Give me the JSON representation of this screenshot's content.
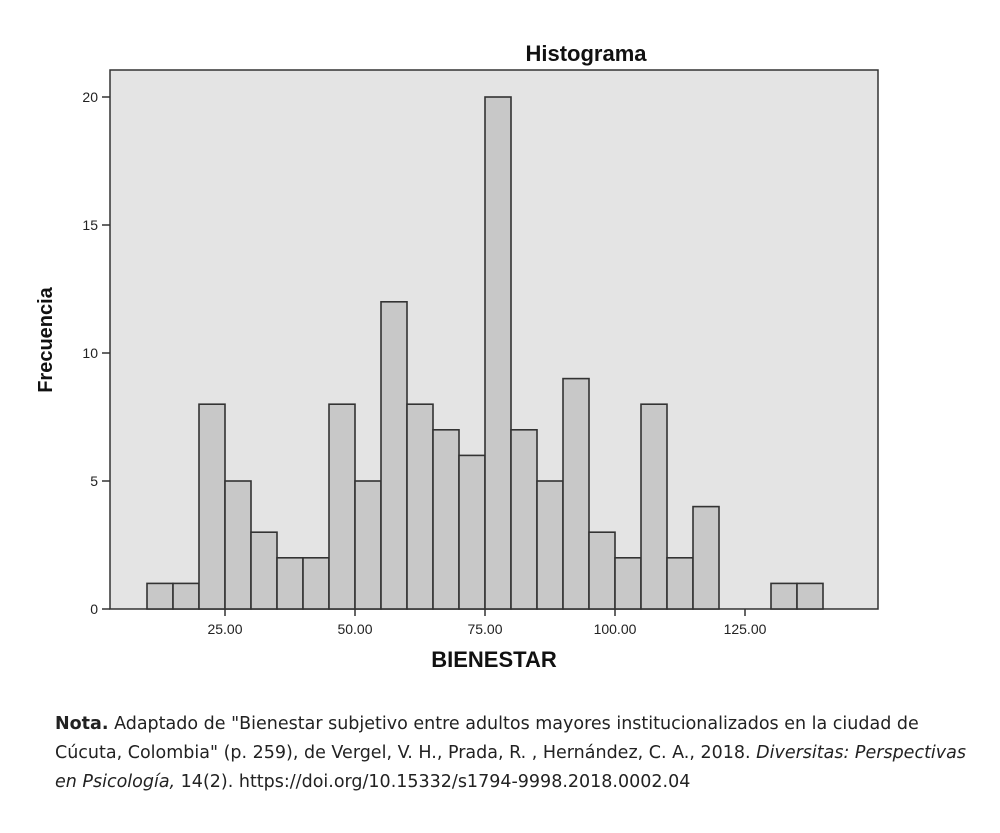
{
  "chart_data": {
    "type": "bar",
    "title": "Histograma",
    "xlabel": "BIENESTAR",
    "ylabel": "Frecuencia",
    "bin_start": 10,
    "bin_width": 5,
    "values": [
      1,
      1,
      8,
      5,
      3,
      2,
      2,
      8,
      5,
      12,
      8,
      7,
      6,
      20,
      7,
      5,
      9,
      3,
      2,
      8,
      2,
      4,
      0,
      0,
      1,
      1
    ],
    "xlim": [
      0,
      150
    ],
    "ylim": [
      0,
      21
    ],
    "xticks": [
      25,
      50,
      75,
      100,
      125
    ],
    "xtick_labels": [
      "25.00",
      "50.00",
      "75.00",
      "100.00",
      "125.00"
    ],
    "yticks": [
      0,
      5,
      10,
      15,
      20
    ],
    "ytick_labels": [
      "0",
      "5",
      "10",
      "15",
      "20"
    ],
    "colors": {
      "bar_fill": "#c8c8c8",
      "bar_stroke": "#333333",
      "plot_background": "#e4e4e4"
    }
  },
  "note": {
    "label": "Nota.",
    "text1": " Adaptado de \"Bienestar subjetivo entre adultos mayores institucionalizados en la ciudad de Cúcuta, Colombia\" (p. 259), de Vergel, V. H., Prada, R. , Hernández, C. A., 2018.",
    "journal": "Diversitas: Perspectivas en Psicología,",
    "text2": " 14(2). https://doi.org/10.15332/s1794-9998.2018.0002.04"
  }
}
